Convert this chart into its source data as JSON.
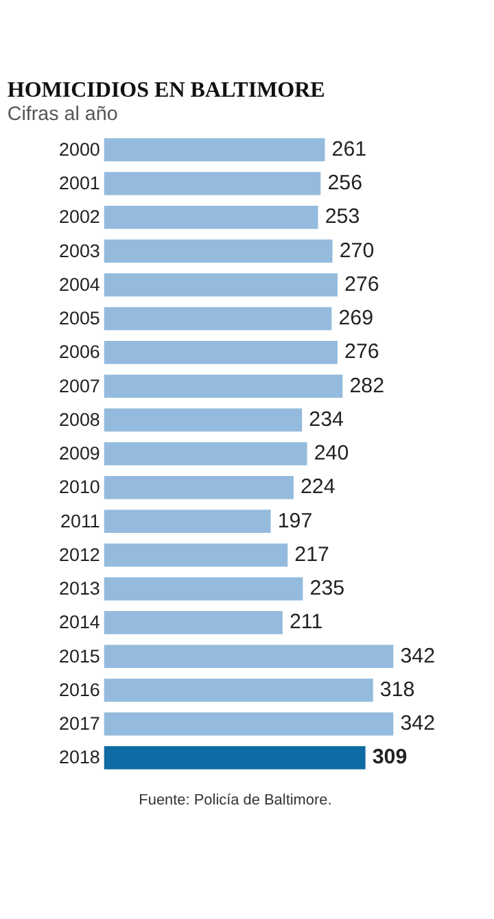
{
  "chart_data": {
    "type": "bar",
    "orientation": "horizontal",
    "data_labels": true,
    "title": "HOMICIDIOS EN BALTIMORE",
    "subtitle": "Cifras al año",
    "categories": [
      "2000",
      "2001",
      "2002",
      "2003",
      "2004",
      "2005",
      "2006",
      "2007",
      "2008",
      "2009",
      "2010",
      "2011",
      "2012",
      "2013",
      "2014",
      "2015",
      "2016",
      "2017",
      "2018"
    ],
    "values": [
      261,
      256,
      253,
      270,
      276,
      269,
      276,
      282,
      234,
      240,
      224,
      197,
      217,
      235,
      211,
      342,
      318,
      342,
      309
    ],
    "colors": [
      "#94bbdd",
      "#94bbdd",
      "#94bbdd",
      "#94bbdd",
      "#94bbdd",
      "#94bbdd",
      "#94bbdd",
      "#94bbdd",
      "#94bbdd",
      "#94bbdd",
      "#94bbdd",
      "#94bbdd",
      "#94bbdd",
      "#94bbdd",
      "#94bbdd",
      "#94bbdd",
      "#94bbdd",
      "#94bbdd",
      "#0f6ba3"
    ],
    "annotations": [
      "Fuente: Policía de Baltimore."
    ]
  }
}
